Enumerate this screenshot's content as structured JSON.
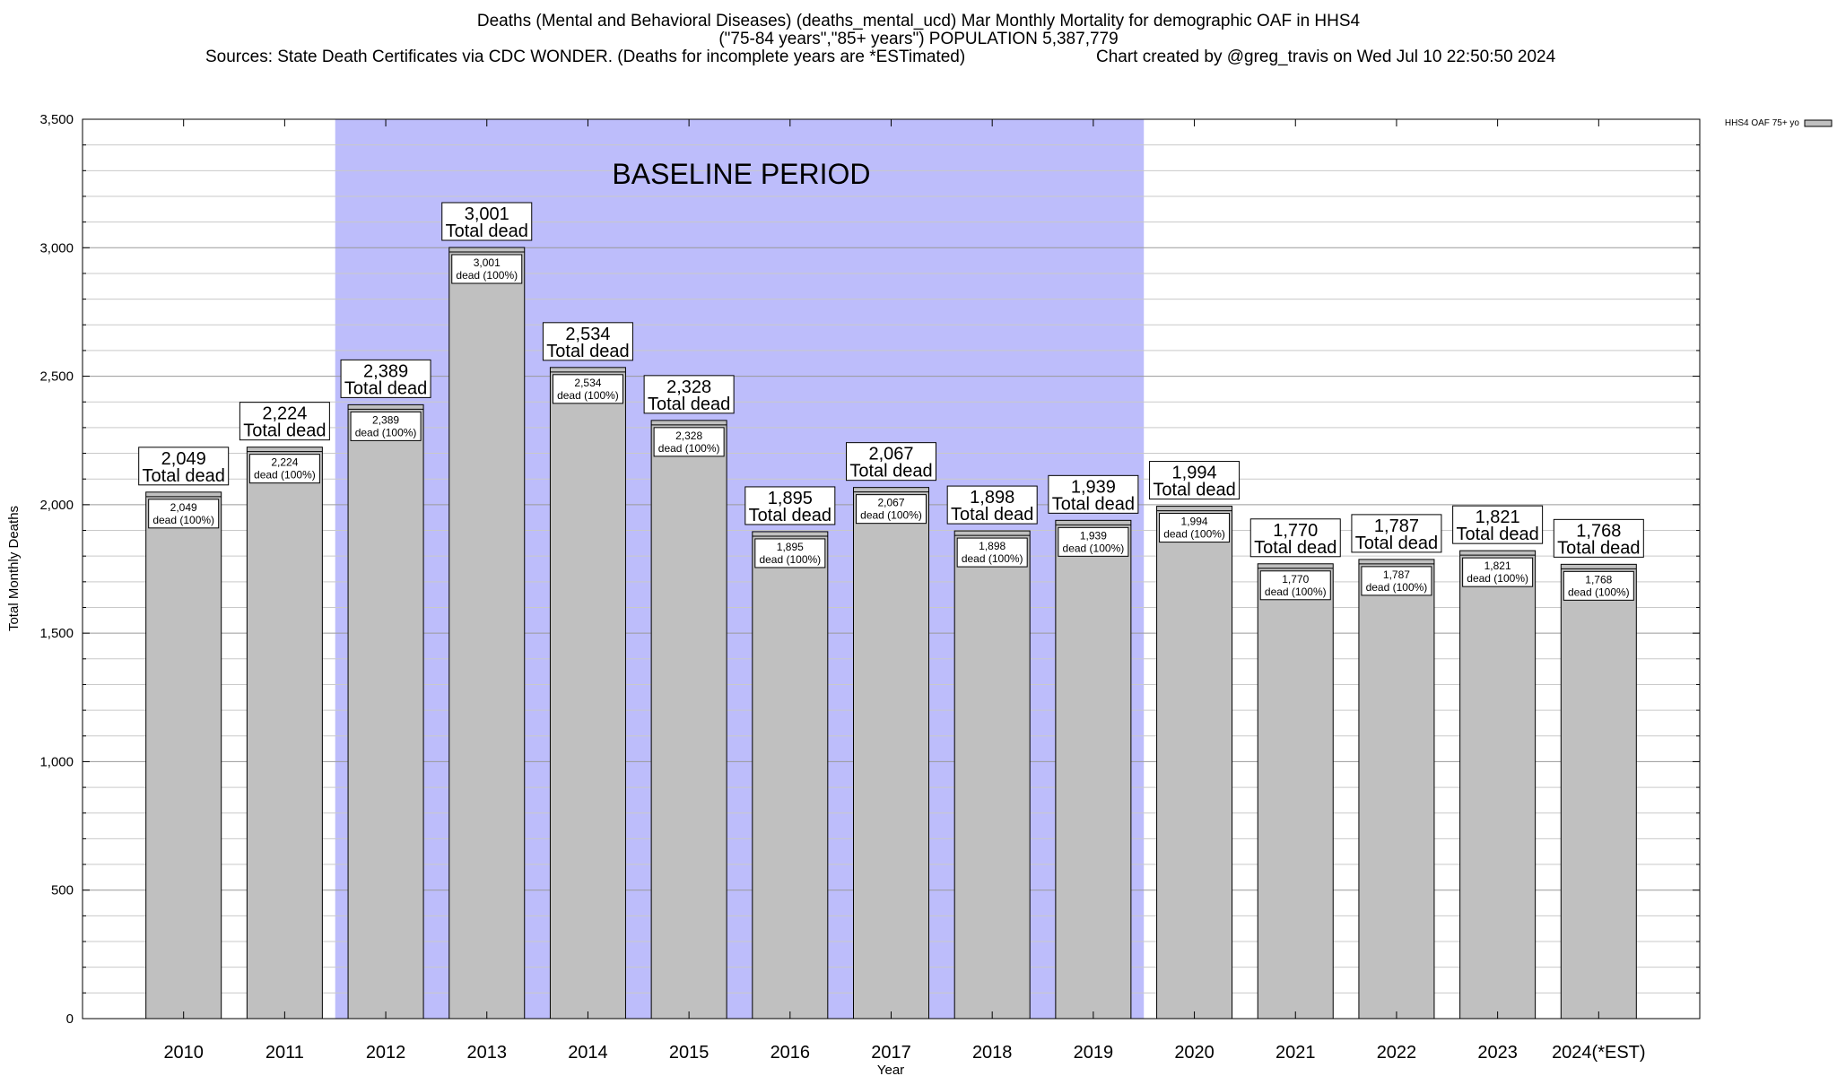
{
  "chart_data": {
    "type": "bar",
    "title_lines": [
      "Deaths (Mental and Behavioral Diseases) (deaths_mental_ucd) Mar Monthly Mortality for demographic OAF in HHS4",
      "(\"75-84 years\",\"85+ years\") POPULATION 5,387,779"
    ],
    "sources": "Sources: State Death Certificates via CDC WONDER. (Deaths for incomplete years are *ESTimated)",
    "credit": "Chart created by @greg_travis on Wed Jul 10 22:50:50 2024",
    "xlabel": "Year",
    "ylabel": "Total Monthly Deaths",
    "ylim": [
      0,
      3500
    ],
    "yticks": [
      0,
      500,
      1000,
      1500,
      2000,
      2500,
      3000,
      3500
    ],
    "ytick_labels": [
      "0",
      "500",
      "1,000",
      "1,500",
      "2,000",
      "2,500",
      "3,000",
      "3,500"
    ],
    "grid": true,
    "legend": {
      "position": "top-right",
      "label": "HHS4 OAF 75+ yo"
    },
    "baseline": {
      "label": "BASELINE PERIOD",
      "start": "2012",
      "end": "2019",
      "color": "#bdbdfb"
    },
    "bar_color": "#c0c0c0",
    "categories": [
      "2010",
      "2011",
      "2012",
      "2013",
      "2014",
      "2015",
      "2016",
      "2017",
      "2018",
      "2019",
      "2020",
      "2021",
      "2022",
      "2023",
      "2024(*EST)"
    ],
    "values": [
      2049,
      2224,
      2389,
      3001,
      2534,
      2328,
      1895,
      2067,
      1898,
      1939,
      1994,
      1770,
      1787,
      1821,
      1768
    ],
    "value_labels": [
      "2,049",
      "2,224",
      "2,389",
      "3,001",
      "2,534",
      "2,328",
      "1,895",
      "2,067",
      "1,898",
      "1,939",
      "1,994",
      "1,770",
      "1,787",
      "1,821",
      "1,768"
    ],
    "total_label": "Total dead",
    "inner_label": "dead (100%)"
  }
}
